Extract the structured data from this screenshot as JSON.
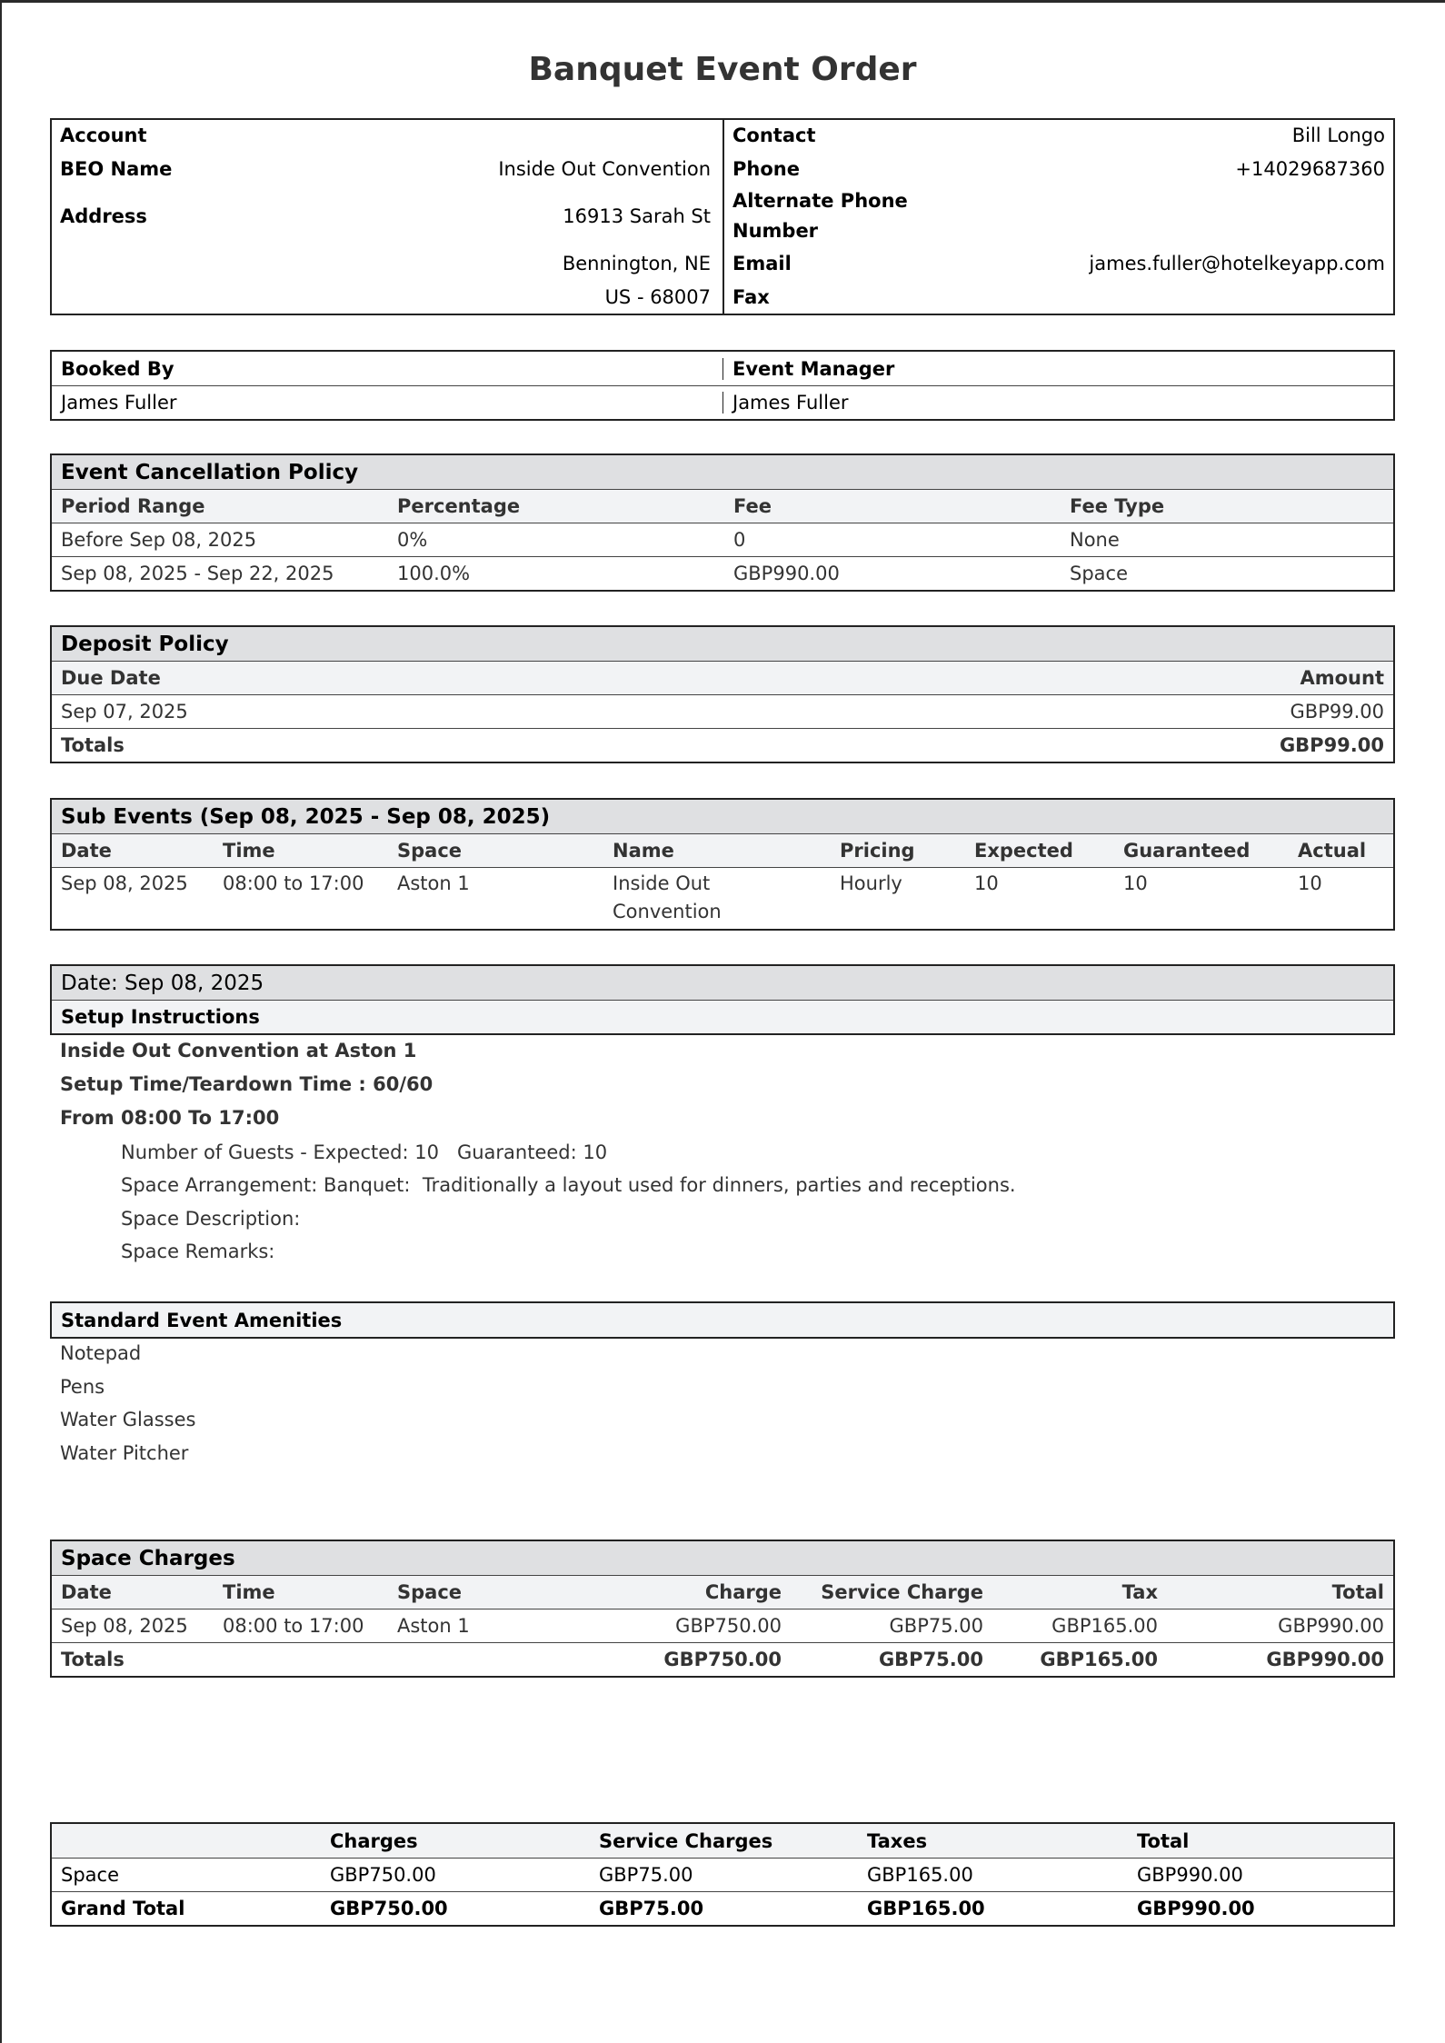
{
  "title": "Banquet Event Order",
  "info": {
    "account_label": "Account",
    "account_value": "",
    "beo_name_label": "BEO Name",
    "beo_name_value": "Inside Out Convention",
    "address_label": "Address",
    "address_lines": [
      "16913 Sarah St",
      "Bennington, NE",
      "US - 68007"
    ],
    "contact_label": "Contact",
    "contact_value": "Bill Longo",
    "phone_label": "Phone",
    "phone_value": "+14029687360",
    "alt_phone_label_lines": [
      "Alternate Phone",
      "Number"
    ],
    "alt_phone_value": "",
    "email_label": "Email",
    "email_value": "james.fuller@hotelkeyapp.com",
    "fax_label": "Fax",
    "fax_value": ""
  },
  "booking": {
    "booked_by_label": "Booked By",
    "booked_by_value": "James Fuller",
    "event_manager_label": "Event Manager",
    "event_manager_value": "James Fuller"
  },
  "cancellation": {
    "title": "Event Cancellation Policy",
    "headers": [
      "Period Range",
      "Percentage",
      "Fee",
      "Fee Type"
    ],
    "rows": [
      [
        "Before Sep 08, 2025",
        "0%",
        "0",
        "None"
      ],
      [
        "Sep 08, 2025 - Sep 22, 2025",
        "100.0%",
        "GBP990.00",
        "Space"
      ]
    ]
  },
  "deposit": {
    "title": "Deposit Policy",
    "headers": [
      "Due Date",
      "Amount"
    ],
    "rows": [
      [
        "Sep 07, 2025",
        "GBP99.00"
      ]
    ],
    "totals_label": "Totals",
    "totals_value": "GBP99.00"
  },
  "sub_events": {
    "title": "Sub Events (Sep 08, 2025 - Sep 08, 2025)",
    "headers": [
      "Date",
      "Time",
      "Space",
      "Name",
      "Pricing",
      "Expected",
      "Guaranteed",
      "Actual"
    ],
    "rows": [
      {
        "date": "Sep 08, 2025",
        "time": "08:00 to 17:00",
        "space": "Aston 1",
        "name_lines": [
          "Inside Out",
          "Convention"
        ],
        "pricing": "Hourly",
        "expected": "10",
        "guaranteed": "10",
        "actual": "10"
      }
    ]
  },
  "day": {
    "title": "Date: Sep 08, 2025",
    "setup_label": "Setup Instructions",
    "lines": [
      "Inside Out Convention at Aston 1",
      "Setup Time/Teardown Time : 60/60",
      "From 08:00 To 17:00"
    ],
    "details": [
      "Number of Guests - Expected: 10   Guaranteed: 10",
      "Space Arrangement: Banquet:  Traditionally a layout used for dinners, parties and receptions.",
      "Space Description:",
      "Space Remarks:"
    ]
  },
  "amenities": {
    "title": "Standard Event Amenities",
    "items": [
      "Notepad",
      "Pens",
      "Water Glasses",
      "Water Pitcher"
    ]
  },
  "space_charges": {
    "title": "Space Charges",
    "headers": [
      "Date",
      "Time",
      "Space",
      "Charge",
      "Service Charge",
      "Tax",
      "Total"
    ],
    "rows": [
      [
        "Sep 08, 2025",
        "08:00 to 17:00",
        "Aston 1",
        "GBP750.00",
        "GBP75.00",
        "GBP165.00",
        "GBP990.00"
      ]
    ],
    "totals": [
      "Totals",
      "",
      "",
      "GBP750.00",
      "GBP75.00",
      "GBP165.00",
      "GBP990.00"
    ]
  },
  "summary": {
    "headers": [
      "",
      "Charges",
      "Service Charges",
      "Taxes",
      "Total"
    ],
    "rows": [
      [
        "Space",
        "GBP750.00",
        "GBP75.00",
        "GBP165.00",
        "GBP990.00"
      ]
    ],
    "grand_total": [
      "Grand Total",
      "GBP750.00",
      "GBP75.00",
      "GBP165.00",
      "GBP990.00"
    ]
  }
}
